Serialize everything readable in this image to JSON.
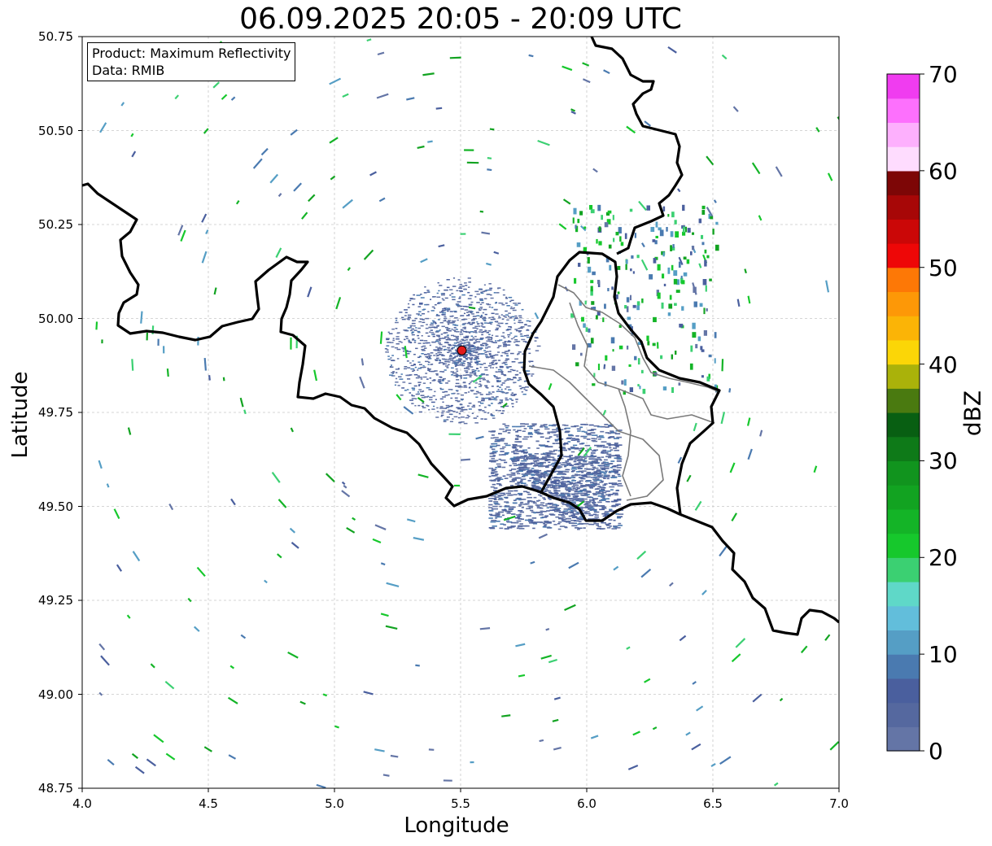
{
  "title": "06.09.2025 20:05 - 20:09 UTC",
  "info_box": {
    "product": "Product: Maximum Reflectivity",
    "data": "Data: RMIB"
  },
  "axes": {
    "xlabel": "Longitude",
    "ylabel": "Latitude",
    "xlim": [
      4.0,
      7.0
    ],
    "ylim": [
      48.75,
      50.75
    ],
    "xticks": [
      "4.0",
      "4.5",
      "5.0",
      "5.5",
      "6.0",
      "6.5",
      "7.0"
    ],
    "yticks": [
      "50.75",
      "50.50",
      "50.25",
      "50.00",
      "49.75",
      "49.50",
      "49.25",
      "49.00",
      "48.75"
    ],
    "grid": true
  },
  "colorbar": {
    "label": "dBZ",
    "ticks": [
      "0",
      "10",
      "20",
      "30",
      "40",
      "50",
      "60",
      "70"
    ],
    "range": [
      0,
      70
    ],
    "step": 2.5,
    "colors": [
      "#6475a6",
      "#55689f",
      "#4a5f9e",
      "#4a7ab0",
      "#559ec5",
      "#62bedb",
      "#5fd8c8",
      "#3bd072",
      "#16c82c",
      "#14b427",
      "#12a321",
      "#11941e",
      "#0e7a18",
      "#085f12",
      "#4a7a10",
      "#aab20a",
      "#fbd607",
      "#fbb406",
      "#fd9807",
      "#fd7806",
      "#ee0707",
      "#cb0707",
      "#a70707",
      "#7d0606",
      "#fedcfe",
      "#fdb0fd",
      "#fd70fd",
      "#f03cf0"
    ]
  },
  "radar_site": {
    "lon": 5.505,
    "lat": 49.915,
    "color": "#e21a1a"
  },
  "map_style": {
    "border_color": "#000000",
    "admin_color": "#7a7a7a",
    "background": "#ffffff"
  }
}
